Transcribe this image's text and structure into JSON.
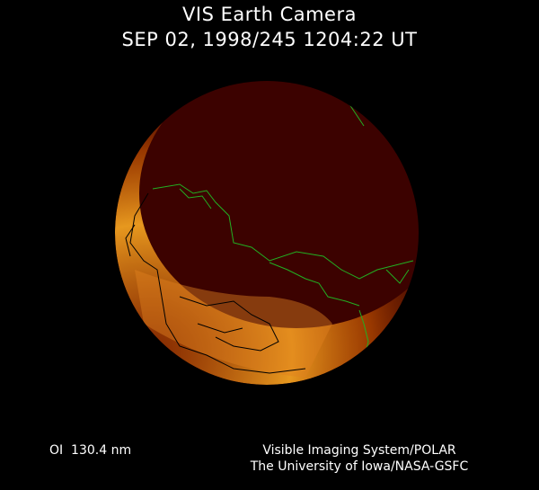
{
  "header": {
    "title": "VIS Earth Camera",
    "timestamp": "SEP 02, 1998/245 1204:22 UT"
  },
  "footer": {
    "wavelength": "OI  130.4 nm",
    "credit_line1": "Visible Imaging System/POLAR",
    "credit_line2": "The University of Iowa/NASA-GSFC"
  },
  "colors": {
    "background": "#000000",
    "disk": "#3c0200",
    "aurora_bright": "#ffd040",
    "aurora_mid": "#c05000",
    "coastline_day": "#22b022",
    "coastline_night": "#000000"
  }
}
